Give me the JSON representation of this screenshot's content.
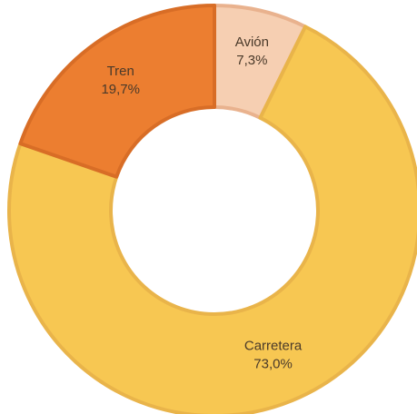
{
  "chart_data": {
    "type": "pie",
    "variant": "donut",
    "categories": [
      "Avión",
      "Carretera",
      "Tren"
    ],
    "values": [
      7.3,
      73.0,
      19.7
    ],
    "value_labels": [
      "7,3%",
      "73,0%",
      "19,7%"
    ],
    "colors": [
      "#f6cfb2",
      "#f7c752",
      "#ec7e30"
    ],
    "stroke_colors": [
      "#e9b28e",
      "#e9b44a",
      "#d86d26"
    ],
    "title": "",
    "legend": "none",
    "start": "top",
    "direction": "clockwise"
  }
}
